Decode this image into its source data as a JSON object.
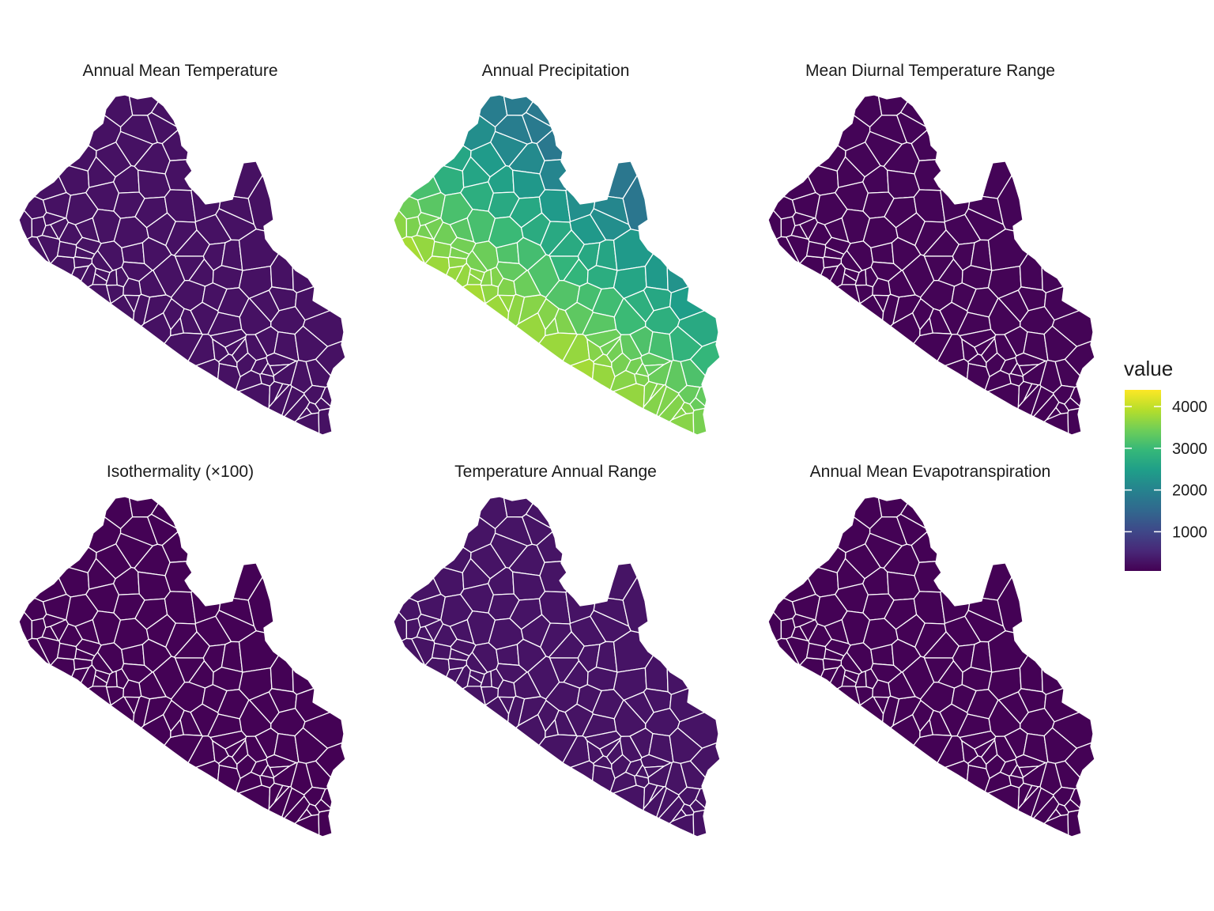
{
  "chart_data": {
    "type": "choropleth",
    "layout": "2x3 facets",
    "colormap": "viridis",
    "colors": {
      "low": "#440154",
      "mid": "#21918c",
      "high": "#fde725",
      "border": "#ffffff"
    },
    "legend": {
      "title": "value",
      "placement": "right",
      "range": [
        60,
        4400
      ],
      "ticks": [
        1000,
        2000,
        3000,
        4000
      ],
      "tick_labels": [
        "1000",
        "2000",
        "3000",
        "4000"
      ]
    },
    "panels": [
      {
        "title": "Annual Mean Temperature",
        "value_range": [
          240,
          275
        ]
      },
      {
        "title": "Annual Precipitation",
        "value_range": [
          1600,
          4400
        ]
      },
      {
        "title": "Mean Diurnal Temperature Range",
        "value_range": [
          70,
          110
        ]
      },
      {
        "title": "Isothermality (×100)",
        "value_range": [
          60,
          85
        ]
      },
      {
        "title": "Temperature Annual Range",
        "value_range": [
          250,
          300
        ]
      },
      {
        "title": "Annual Mean Evapotranspiration",
        "value_range": [
          60,
          80
        ]
      }
    ]
  }
}
